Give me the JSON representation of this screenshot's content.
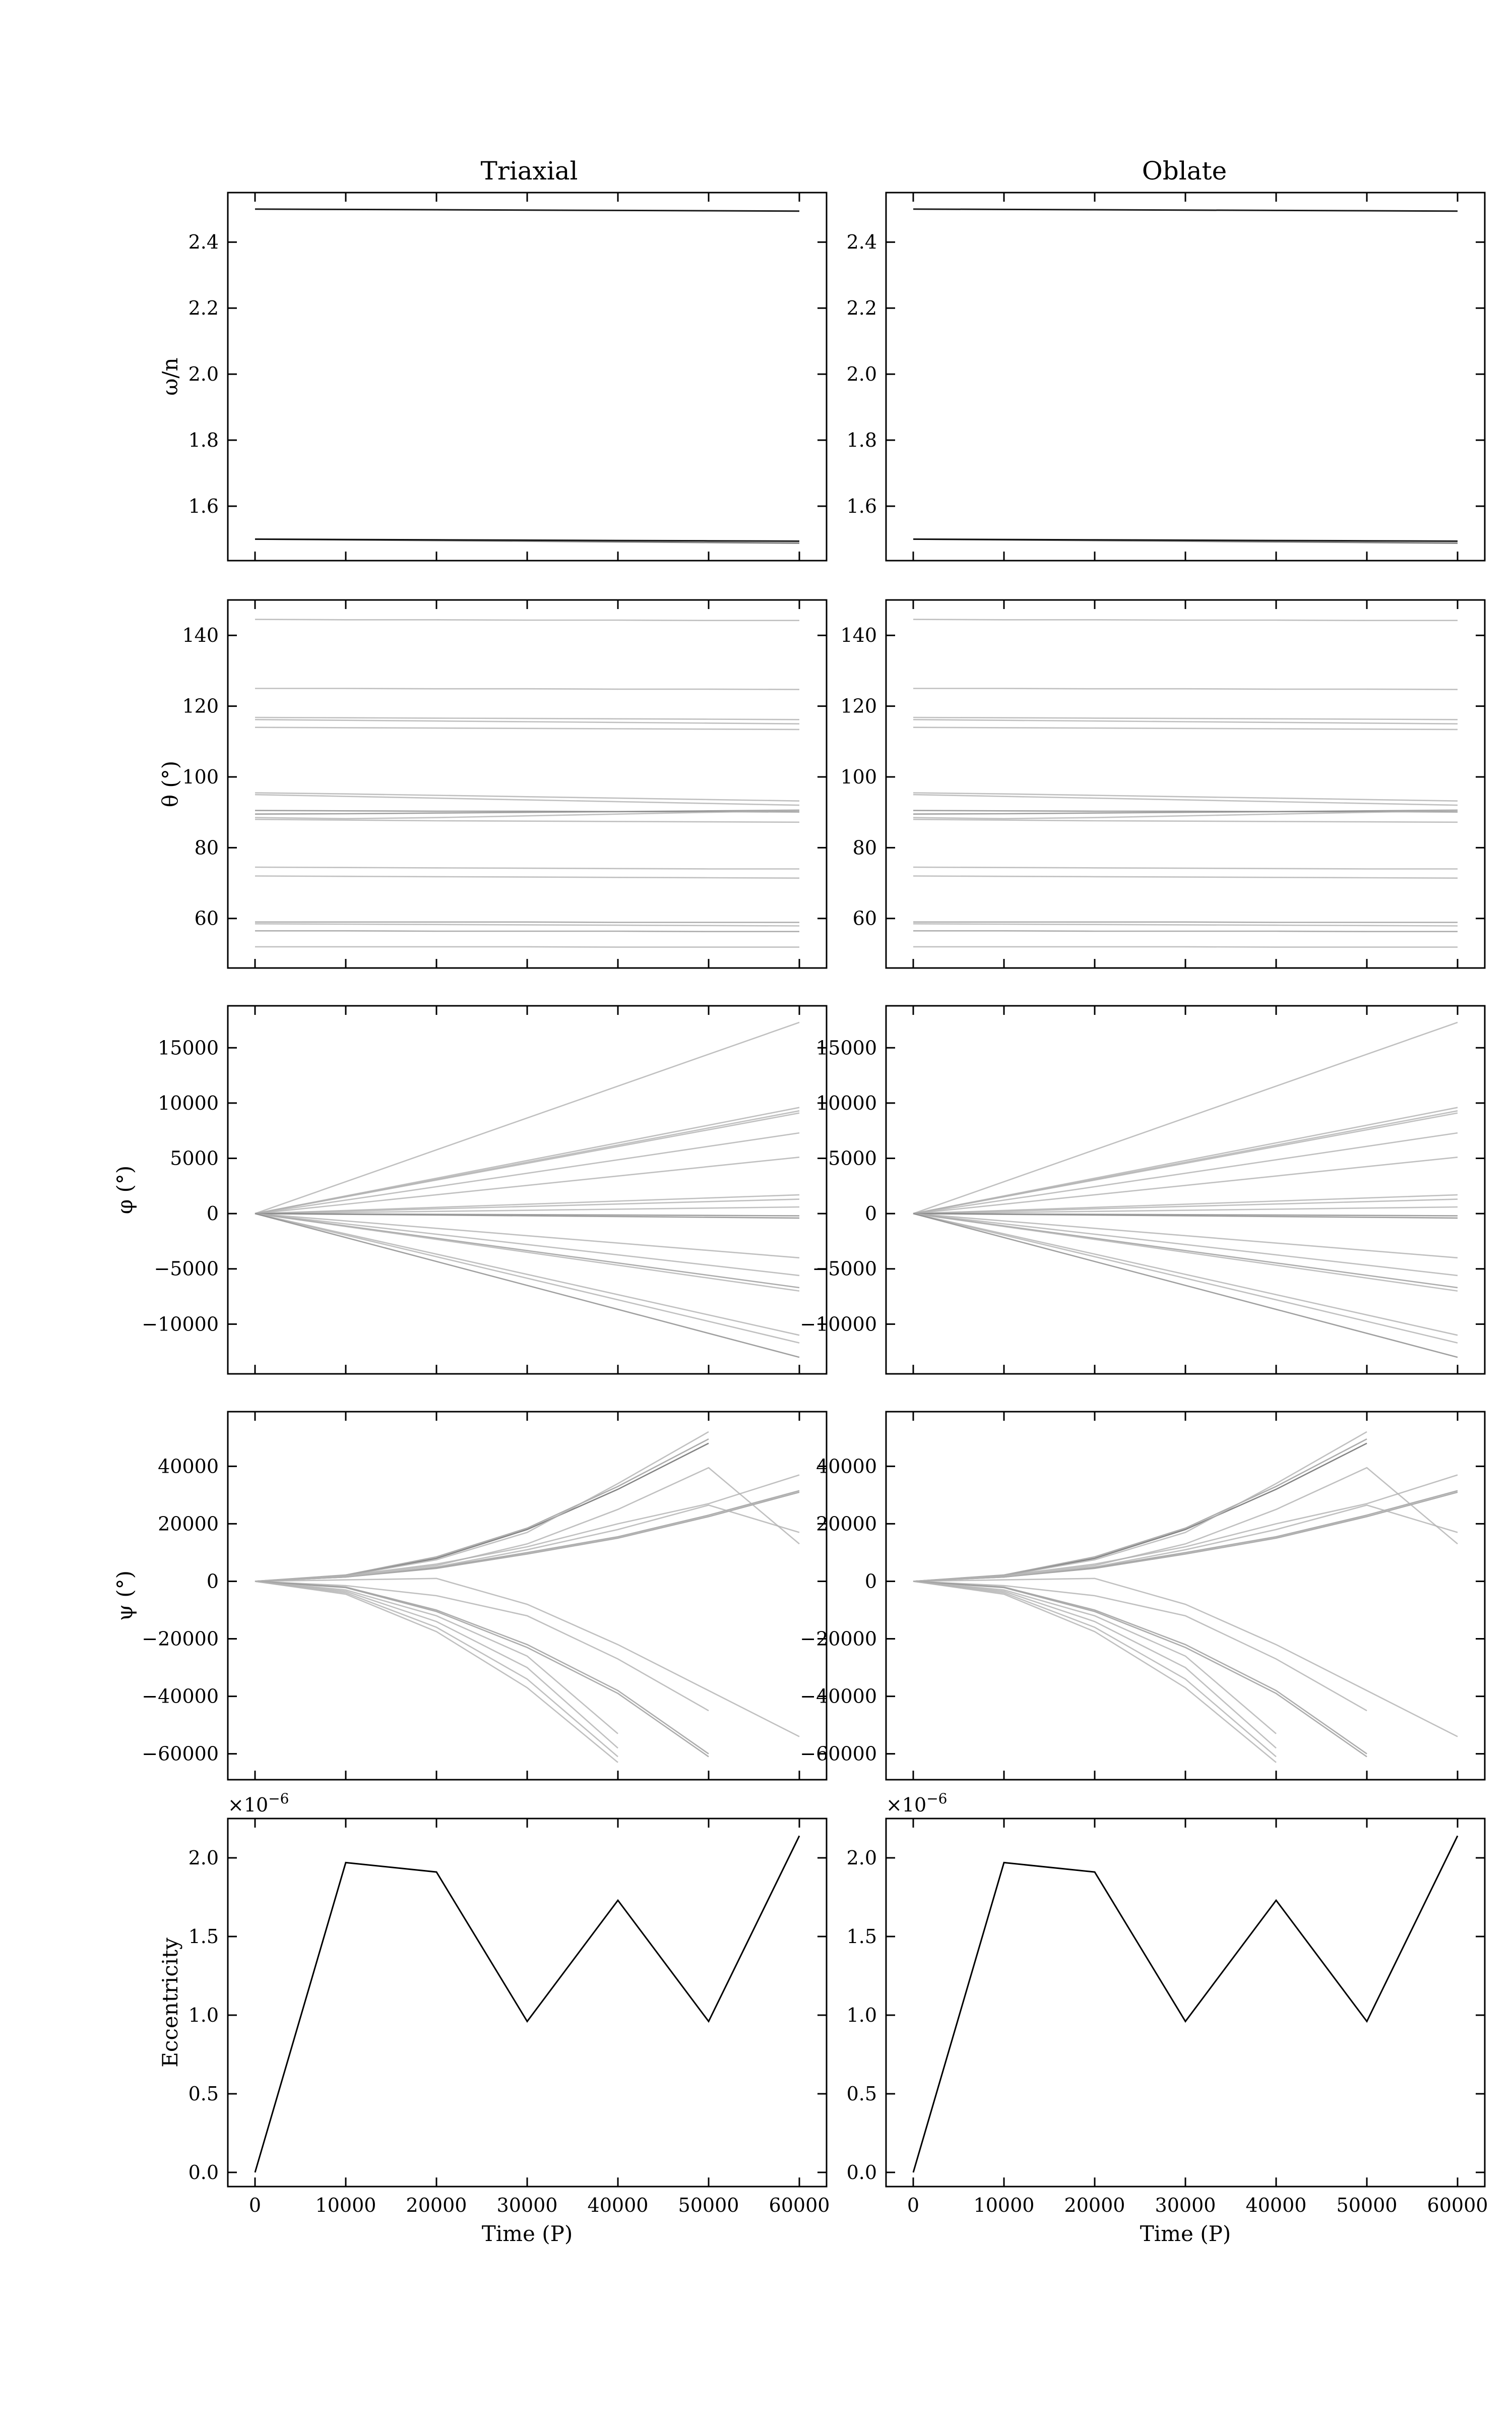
{
  "columns": [
    "Triaxial",
    "Oblate"
  ],
  "x_axis": {
    "label": "Time (P)",
    "ticks": [
      0,
      10000,
      20000,
      30000,
      40000,
      50000,
      60000
    ],
    "tick_labels": [
      "0",
      "10000",
      "20000",
      "30000",
      "40000",
      "50000",
      "60000"
    ],
    "range": [
      -3000,
      63000
    ]
  },
  "chart_data": [
    {
      "type": "line",
      "panel": "omega",
      "ylabel": "ω/n",
      "ylim": [
        1.435,
        2.55
      ],
      "yticks": [
        1.6,
        1.8,
        2.0,
        2.2,
        2.4
      ],
      "ytick_labels": [
        "1.6",
        "1.8",
        "2.0",
        "2.2",
        "2.4"
      ],
      "x": [
        0,
        10000,
        20000,
        30000,
        40000,
        50000,
        60000
      ],
      "series": [
        {
          "color": "#000000",
          "opacity": 0.9,
          "values": [
            2.5,
            2.499,
            2.498,
            2.497,
            2.496,
            2.495,
            2.494
          ]
        },
        {
          "color": "#000000",
          "opacity": 0.9,
          "values": [
            1.5,
            1.499,
            1.498,
            1.497,
            1.496,
            1.495,
            1.494
          ]
        },
        {
          "color": "#000000",
          "opacity": 0.5,
          "values": [
            1.5,
            1.498,
            1.496,
            1.494,
            1.492,
            1.49,
            1.488
          ]
        }
      ]
    },
    {
      "type": "line",
      "panel": "theta",
      "ylabel": "θ (°)",
      "ylim": [
        46,
        150
      ],
      "yticks": [
        60,
        80,
        100,
        120,
        140
      ],
      "ytick_labels": [
        "60",
        "80",
        "100",
        "120",
        "140"
      ],
      "x": [
        0,
        10000,
        20000,
        30000,
        40000,
        50000,
        60000
      ],
      "series": [
        {
          "color": "#b0b0b0",
          "opacity": 0.8,
          "values": [
            144.5,
            144.4,
            144.4,
            144.3,
            144.3,
            144.2,
            144.2
          ]
        },
        {
          "color": "#b0b0b0",
          "opacity": 0.8,
          "values": [
            125,
            125,
            124.9,
            124.9,
            124.8,
            124.8,
            124.7
          ]
        },
        {
          "color": "#b0b0b0",
          "opacity": 0.8,
          "values": [
            116.8,
            116.7,
            116.6,
            116.5,
            116.4,
            116.3,
            116.2
          ]
        },
        {
          "color": "#b0b0b0",
          "opacity": 0.8,
          "values": [
            116.2,
            116,
            115.8,
            115.6,
            115.4,
            115.2,
            115
          ]
        },
        {
          "color": "#b0b0b0",
          "opacity": 0.8,
          "values": [
            114,
            113.9,
            113.8,
            113.7,
            113.6,
            113.5,
            113.4
          ]
        },
        {
          "color": "#b0b0b0",
          "opacity": 0.8,
          "values": [
            95.5,
            95.2,
            94.8,
            94.4,
            94,
            93.6,
            93.2
          ]
        },
        {
          "color": "#b0b0b0",
          "opacity": 0.8,
          "values": [
            95,
            94.5,
            94,
            93.5,
            93,
            92.5,
            92
          ]
        },
        {
          "color": "#888888",
          "opacity": 0.8,
          "values": [
            90.5,
            90.4,
            90.3,
            90.3,
            90.2,
            90.2,
            90.1
          ]
        },
        {
          "color": "#888888",
          "opacity": 0.8,
          "values": [
            89.5,
            89.6,
            89.8,
            90,
            90.2,
            90.4,
            90.6
          ]
        },
        {
          "color": "#b0b0b0",
          "opacity": 0.8,
          "values": [
            88.5,
            88.2,
            88.5,
            89,
            89.5,
            90,
            90.5
          ]
        },
        {
          "color": "#b0b0b0",
          "opacity": 0.8,
          "values": [
            88,
            87.8,
            87.6,
            87.5,
            87.4,
            87.3,
            87.2
          ]
        },
        {
          "color": "#b0b0b0",
          "opacity": 0.8,
          "values": [
            74.5,
            74.4,
            74.3,
            74.2,
            74.1,
            74,
            74
          ]
        },
        {
          "color": "#b0b0b0",
          "opacity": 0.8,
          "values": [
            72,
            71.9,
            71.8,
            71.7,
            71.6,
            71.5,
            71.4
          ]
        },
        {
          "color": "#999999",
          "opacity": 0.8,
          "values": [
            59,
            59,
            59,
            59,
            58.9,
            58.9,
            58.9
          ]
        },
        {
          "color": "#b0b0b0",
          "opacity": 0.8,
          "values": [
            58.5,
            58.4,
            58.3,
            58.2,
            58.1,
            58,
            57.9
          ]
        },
        {
          "color": "#999999",
          "opacity": 0.8,
          "values": [
            56.5,
            56.5,
            56.4,
            56.4,
            56.4,
            56.3,
            56.3
          ]
        },
        {
          "color": "#b0b0b0",
          "opacity": 0.8,
          "values": [
            52,
            52,
            52,
            52,
            51.9,
            51.9,
            51.9
          ]
        }
      ]
    },
    {
      "type": "line",
      "panel": "phi",
      "ylabel": "φ (°)",
      "ylim": [
        -14500,
        18800
      ],
      "yticks": [
        -10000,
        -5000,
        0,
        5000,
        10000,
        15000
      ],
      "ytick_labels": [
        "−10000",
        "−5000",
        "0",
        "5000",
        "10000",
        "15000"
      ],
      "x": [
        0,
        60000
      ],
      "series": [
        {
          "color": "#b0b0b0",
          "opacity": 0.8,
          "values": [
            0,
            17300
          ]
        },
        {
          "color": "#b0b0b0",
          "opacity": 0.8,
          "values": [
            0,
            9600
          ]
        },
        {
          "color": "#b0b0b0",
          "opacity": 0.8,
          "values": [
            0,
            9300
          ]
        },
        {
          "color": "#b0b0b0",
          "opacity": 0.8,
          "values": [
            0,
            9100
          ]
        },
        {
          "color": "#b0b0b0",
          "opacity": 0.8,
          "values": [
            0,
            7300
          ]
        },
        {
          "color": "#b0b0b0",
          "opacity": 0.8,
          "values": [
            0,
            5100
          ]
        },
        {
          "color": "#b0b0b0",
          "opacity": 0.8,
          "values": [
            0,
            1700
          ]
        },
        {
          "color": "#b0b0b0",
          "opacity": 0.8,
          "values": [
            0,
            1300
          ]
        },
        {
          "color": "#b0b0b0",
          "opacity": 0.8,
          "values": [
            0,
            600
          ]
        },
        {
          "color": "#888888",
          "opacity": 0.8,
          "values": [
            0,
            -200
          ]
        },
        {
          "color": "#888888",
          "opacity": 0.8,
          "values": [
            0,
            -400
          ]
        },
        {
          "color": "#b0b0b0",
          "opacity": 0.8,
          "values": [
            0,
            -4000
          ]
        },
        {
          "color": "#b0b0b0",
          "opacity": 0.8,
          "values": [
            0,
            -5600
          ]
        },
        {
          "color": "#999999",
          "opacity": 0.8,
          "values": [
            0,
            -6700
          ]
        },
        {
          "color": "#b0b0b0",
          "opacity": 0.8,
          "values": [
            0,
            -7000
          ]
        },
        {
          "color": "#b0b0b0",
          "opacity": 0.8,
          "values": [
            0,
            -11000
          ]
        },
        {
          "color": "#b0b0b0",
          "opacity": 0.8,
          "values": [
            0,
            -11700
          ]
        },
        {
          "color": "#888888",
          "opacity": 0.8,
          "values": [
            0,
            -13000
          ]
        }
      ]
    },
    {
      "type": "line",
      "panel": "psi",
      "ylabel": "ψ (°)",
      "ylim": [
        -69000,
        59000
      ],
      "yticks": [
        -60000,
        -40000,
        -20000,
        0,
        20000,
        40000
      ],
      "ytick_labels": [
        "−60000",
        "−40000",
        "−20000",
        "0",
        "20000",
        "40000"
      ],
      "x": [
        0,
        10000,
        20000,
        30000,
        40000,
        50000,
        60000
      ],
      "series": [
        {
          "color": "#777777",
          "opacity": 0.9,
          "values": [
            0,
            2000,
            8000,
            18000,
            32000,
            48000,
            null
          ]
        },
        {
          "color": "#999999",
          "opacity": 0.8,
          "values": [
            0,
            2200,
            8500,
            18500,
            33000,
            49500,
            null
          ]
        },
        {
          "color": "#b0b0b0",
          "opacity": 0.8,
          "values": [
            0,
            2000,
            7500,
            17000,
            34000,
            52000,
            null
          ]
        },
        {
          "color": "#999999",
          "opacity": 0.8,
          "values": [
            0,
            1500,
            4500,
            9500,
            15000,
            22500,
            31000
          ]
        },
        {
          "color": "#999999",
          "opacity": 0.8,
          "values": [
            0,
            1500,
            4800,
            10000,
            15500,
            23000,
            31500
          ]
        },
        {
          "color": "#b0b0b0",
          "opacity": 0.8,
          "values": [
            0,
            2000,
            6000,
            12000,
            20000,
            27000,
            37000
          ]
        },
        {
          "color": "#b0b0b0",
          "opacity": 0.8,
          "values": [
            0,
            1800,
            5500,
            13000,
            25000,
            39500,
            13000
          ]
        },
        {
          "color": "#b0b0b0",
          "opacity": 0.8,
          "values": [
            0,
            1500,
            5000,
            11000,
            18000,
            26500,
            17000
          ]
        },
        {
          "color": "#b0b0b0",
          "opacity": 0.8,
          "values": [
            0,
            500,
            1000,
            -8000,
            -22000,
            -38000,
            -54000
          ]
        },
        {
          "color": "#b0b0b0",
          "opacity": 0.8,
          "values": [
            0,
            -1500,
            -5000,
            -12000,
            -27000,
            -45000,
            null
          ]
        },
        {
          "color": "#999999",
          "opacity": 0.8,
          "values": [
            0,
            -2000,
            -10000,
            -22000,
            -38000,
            -60000,
            null
          ]
        },
        {
          "color": "#999999",
          "opacity": 0.8,
          "values": [
            0,
            -2200,
            -10500,
            -23000,
            -39000,
            -61000,
            null
          ]
        },
        {
          "color": "#b0b0b0",
          "opacity": 0.8,
          "values": [
            0,
            -3000,
            -12000,
            -26000,
            -53000,
            null,
            null
          ]
        },
        {
          "color": "#b0b0b0",
          "opacity": 0.8,
          "values": [
            0,
            -3500,
            -14000,
            -30000,
            -58000,
            null,
            null
          ]
        },
        {
          "color": "#b0b0b0",
          "opacity": 0.8,
          "values": [
            0,
            -4000,
            -16000,
            -34000,
            -61000,
            null,
            null
          ]
        },
        {
          "color": "#b0b0b0",
          "opacity": 0.8,
          "values": [
            0,
            -4500,
            -17500,
            -37000,
            -63000,
            null,
            null
          ]
        }
      ]
    },
    {
      "type": "line",
      "panel": "eccentricity",
      "ylabel": "Eccentricity",
      "ylim": [
        -0.09,
        2.25
      ],
      "yticks": [
        0.0,
        0.5,
        1.0,
        1.5,
        2.0
      ],
      "ytick_labels": [
        "0.0",
        "0.5",
        "1.0",
        "1.5",
        "2.0"
      ],
      "y_multiplier_label": "×10",
      "y_multiplier_exp": "−6",
      "x": [
        0,
        10000,
        20000,
        30000,
        40000,
        50000,
        60000
      ],
      "series": [
        {
          "color": "#000000",
          "opacity": 1.0,
          "values": [
            0.0,
            1.97,
            1.91,
            0.96,
            1.73,
            0.96,
            2.14
          ]
        }
      ]
    }
  ]
}
